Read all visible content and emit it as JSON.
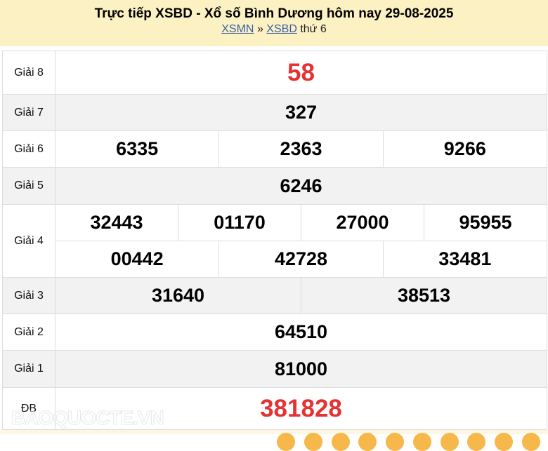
{
  "header": {
    "title": "Trực tiếp XSBD - Xổ số Bình Dương hôm nay 29-08-2025",
    "breadcrumb": {
      "link1": "XSMN",
      "separator": "»",
      "link2": "XSBD",
      "suffix": "thứ 6"
    }
  },
  "prizes": [
    {
      "label": "Giải 8",
      "numbers": [
        [
          "58"
        ]
      ],
      "highlight": true
    },
    {
      "label": "Giải 7",
      "numbers": [
        [
          "327"
        ]
      ]
    },
    {
      "label": "Giải 6",
      "numbers": [
        [
          "6335",
          "2363",
          "9266"
        ]
      ]
    },
    {
      "label": "Giải 5",
      "numbers": [
        [
          "6246"
        ]
      ]
    },
    {
      "label": "Giải 4",
      "numbers": [
        [
          "32443",
          "01170",
          "27000",
          "95955"
        ],
        [
          "00442",
          "42728",
          "33481"
        ]
      ]
    },
    {
      "label": "Giải 3",
      "numbers": [
        [
          "31640",
          "38513"
        ]
      ]
    },
    {
      "label": "Giải 2",
      "numbers": [
        [
          "64510"
        ]
      ]
    },
    {
      "label": "Giải 1",
      "numbers": [
        [
          "81000"
        ]
      ]
    },
    {
      "label": "ĐB",
      "numbers": [
        [
          "381828"
        ]
      ],
      "highlight": true
    }
  ],
  "watermark": "BAOQUOCTE.VN",
  "colors": {
    "header_bg": "#fcf1c2",
    "highlight": "#e53232",
    "link": "#3a5fa8",
    "alt_row": "#f2f2f2"
  }
}
